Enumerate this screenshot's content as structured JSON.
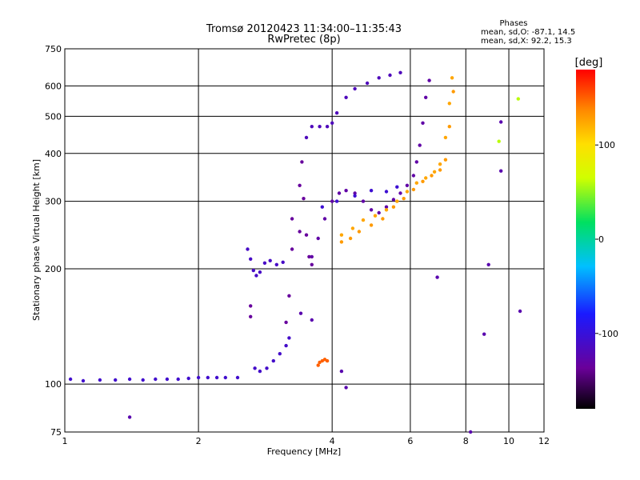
{
  "chart_data": {
    "type": "scatter",
    "title": "Tromsø 20120423 11:34:00–11:35:43",
    "subtitle": "RwPretec (8p)",
    "xlabel": "Frequency [MHz]",
    "ylabel": "Stationary phase Virtual Height [km]",
    "xscale": "log",
    "yscale": "log",
    "xlim": [
      1,
      12
    ],
    "ylim": [
      75,
      750
    ],
    "x_ticks": [
      1,
      2,
      4,
      6,
      8,
      10,
      12
    ],
    "y_ticks": [
      75,
      100,
      200,
      300,
      400,
      500,
      600,
      750
    ],
    "x_grid": [
      2,
      4,
      6,
      8,
      10
    ],
    "y_grid": [
      100,
      200,
      300,
      400,
      500,
      600
    ],
    "grid": true,
    "stats": {
      "title": "Phases",
      "line_o": "mean, sd,O: -87.1, 14.5",
      "line_x": "mean, sd,X:  92.2, 15.3"
    },
    "colorbar": {
      "label": "[deg]",
      "range": [
        -180,
        180
      ],
      "ticks": [
        100,
        0,
        -100
      ],
      "colormap": "rainbow (black → violet → blue → cyan → green → yellow → red)"
    },
    "series": [
      {
        "phase_deg": -108,
        "points": [
          [
            1.03,
            103
          ],
          [
            1.1,
            102
          ],
          [
            1.2,
            102.5
          ],
          [
            1.3,
            102.5
          ],
          [
            1.4,
            103
          ],
          [
            1.5,
            102.5
          ],
          [
            1.6,
            103
          ],
          [
            1.7,
            103
          ],
          [
            1.8,
            103
          ],
          [
            1.9,
            103.5
          ],
          [
            2.0,
            104
          ],
          [
            2.1,
            104
          ],
          [
            2.2,
            104
          ],
          [
            2.3,
            104
          ],
          [
            2.45,
            104
          ]
        ]
      },
      {
        "phase_deg": -112,
        "points": [
          [
            2.58,
            225
          ],
          [
            2.62,
            212
          ],
          [
            2.66,
            198
          ],
          [
            2.7,
            192
          ],
          [
            2.75,
            196
          ],
          [
            2.82,
            207
          ],
          [
            2.9,
            210
          ],
          [
            3.0,
            205
          ],
          [
            3.1,
            208
          ]
        ]
      },
      {
        "phase_deg": -110,
        "points": [
          [
            2.68,
            110
          ],
          [
            2.75,
            108
          ],
          [
            2.85,
            110
          ],
          [
            2.95,
            115
          ],
          [
            3.05,
            120
          ],
          [
            3.15,
            126
          ],
          [
            3.2,
            132
          ]
        ]
      },
      {
        "phase_deg": -135,
        "points": [
          [
            2.62,
            160
          ],
          [
            2.62,
            150
          ],
          [
            3.15,
            145
          ],
          [
            3.2,
            170
          ],
          [
            3.25,
            225
          ],
          [
            3.25,
            270
          ],
          [
            3.38,
            250
          ],
          [
            3.38,
            330
          ],
          [
            3.42,
            380
          ],
          [
            3.45,
            305
          ],
          [
            3.5,
            245
          ],
          [
            3.55,
            215
          ],
          [
            3.6,
            205
          ]
        ]
      },
      {
        "phase_deg": -130,
        "points": [
          [
            3.6,
            215
          ],
          [
            3.72,
            240
          ],
          [
            3.85,
            270
          ],
          [
            4.0,
            300
          ],
          [
            4.15,
            315
          ],
          [
            4.3,
            320
          ],
          [
            4.5,
            315
          ],
          [
            4.7,
            300
          ],
          [
            4.9,
            285
          ],
          [
            5.1,
            280
          ],
          [
            5.3,
            290
          ],
          [
            5.5,
            303
          ],
          [
            5.7,
            315
          ],
          [
            5.9,
            330
          ],
          [
            6.1,
            350
          ],
          [
            6.2,
            380
          ],
          [
            6.3,
            420
          ],
          [
            6.4,
            480
          ],
          [
            6.5,
            560
          ],
          [
            6.62,
            620
          ]
        ]
      },
      {
        "phase_deg": -118,
        "points": [
          [
            3.5,
            440
          ],
          [
            3.6,
            470
          ],
          [
            3.75,
            470
          ],
          [
            3.9,
            470
          ],
          [
            4.0,
            480
          ],
          [
            4.1,
            510
          ],
          [
            4.3,
            560
          ],
          [
            4.5,
            590
          ],
          [
            4.8,
            610
          ],
          [
            5.1,
            630
          ],
          [
            5.4,
            640
          ],
          [
            5.7,
            650
          ]
        ]
      },
      {
        "phase_deg": -105,
        "points": [
          [
            3.8,
            290
          ],
          [
            4.1,
            300
          ],
          [
            4.5,
            310
          ],
          [
            4.9,
            320
          ],
          [
            5.3,
            318
          ],
          [
            5.6,
            327
          ]
        ]
      },
      {
        "phase_deg": 125,
        "points": [
          [
            4.2,
            245
          ],
          [
            4.45,
            255
          ],
          [
            4.7,
            268
          ],
          [
            5.0,
            275
          ],
          [
            5.3,
            285
          ],
          [
            5.6,
            300
          ],
          [
            5.9,
            318
          ],
          [
            6.2,
            335
          ],
          [
            6.5,
            345
          ],
          [
            6.8,
            358
          ],
          [
            7.0,
            375
          ],
          [
            7.2,
            440
          ],
          [
            7.35,
            540
          ],
          [
            7.45,
            630
          ]
        ]
      },
      {
        "phase_deg": 130,
        "points": [
          [
            4.2,
            235
          ],
          [
            4.4,
            240
          ],
          [
            4.6,
            250
          ],
          [
            4.9,
            260
          ],
          [
            5.2,
            270
          ],
          [
            5.5,
            290
          ],
          [
            5.8,
            305
          ],
          [
            6.1,
            322
          ],
          [
            6.4,
            338
          ],
          [
            6.7,
            350
          ],
          [
            7.0,
            362
          ],
          [
            7.2,
            385
          ],
          [
            7.35,
            470
          ],
          [
            7.5,
            580
          ]
        ]
      },
      {
        "phase_deg": 150,
        "points": [
          [
            3.72,
            112
          ],
          [
            3.75,
            114
          ],
          [
            3.8,
            115
          ],
          [
            3.85,
            116
          ],
          [
            3.9,
            115
          ]
        ]
      },
      {
        "phase_deg": -125,
        "points": [
          [
            1.4,
            82
          ],
          [
            3.4,
            153
          ],
          [
            3.6,
            147
          ],
          [
            4.3,
            98
          ],
          [
            4.2,
            108
          ],
          [
            8.8,
            135
          ],
          [
            9.6,
            483
          ],
          [
            9.6,
            360
          ],
          [
            10.6,
            155
          ],
          [
            9.0,
            205
          ],
          [
            6.9,
            190
          ],
          [
            8.2,
            75
          ]
        ]
      },
      {
        "phase_deg": 60,
        "points": [
          [
            10.5,
            555
          ],
          [
            9.5,
            430
          ]
        ]
      }
    ]
  }
}
